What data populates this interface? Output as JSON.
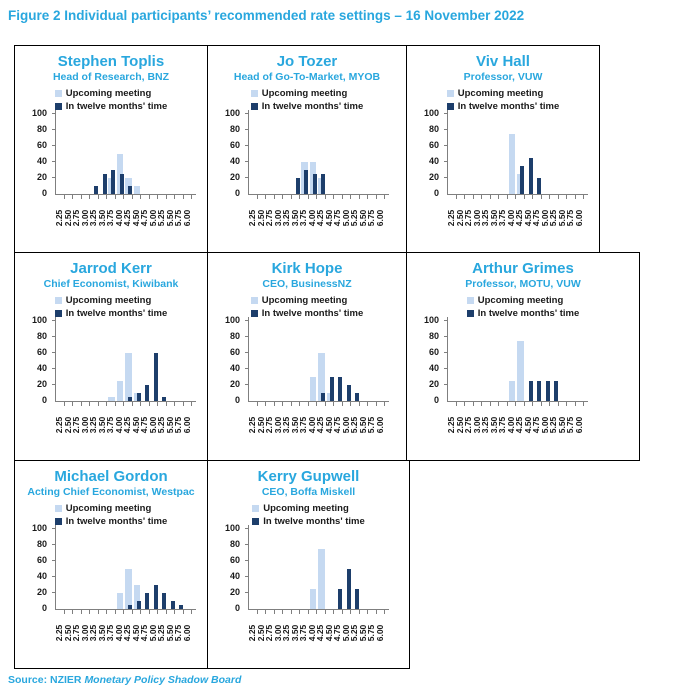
{
  "header": {
    "title": "Figure 2 Individual participants’ recommended rate settings – 16 November 2022"
  },
  "footer": {
    "source_prefix": "Source: NZIER ",
    "source_name": "Monetary Policy Shadow Board"
  },
  "colors": {
    "accent_blue": "#29A7DE",
    "bar_light": "#C5D9F1",
    "bar_dark": "#1D3E6B",
    "axis_gray": "#7F7F7F"
  },
  "legend": {
    "upcoming_label": "Upcoming meeting",
    "twelve_label": "In twelve months' time"
  },
  "axis": {
    "yticks": [
      0,
      20,
      40,
      60,
      80,
      100
    ],
    "ylim": [
      0,
      100
    ]
  },
  "chart_data": [
    {
      "type": "bar",
      "title": "Stephen Toplis",
      "subtitle": "Head of Research, BNZ",
      "categories": [
        "2.25",
        "2.50",
        "2.75",
        "3.00",
        "3.25",
        "3.50",
        "3.75",
        "4.00",
        "4.25",
        "4.50",
        "4.75",
        "5.00",
        "5.25",
        "5.50",
        "5.75",
        "6.00"
      ],
      "ylim": [
        0,
        100
      ],
      "grid": false,
      "legend_position": "top",
      "series": [
        {
          "name": "Upcoming meeting",
          "values": [
            0,
            0,
            0,
            0,
            0,
            0,
            20,
            50,
            20,
            10,
            0,
            0,
            0,
            0,
            0,
            0
          ]
        },
        {
          "name": "In twelve months' time",
          "values": [
            0,
            0,
            0,
            0,
            10,
            25,
            30,
            25,
            10,
            0,
            0,
            0,
            0,
            0,
            0,
            0
          ]
        }
      ]
    },
    {
      "type": "bar",
      "title": "Jo Tozer",
      "subtitle": "Head of Go-To-Market, MYOB",
      "categories": [
        "2.25",
        "2.50",
        "2.75",
        "3.00",
        "3.25",
        "3.50",
        "3.75",
        "4.00",
        "4.25",
        "4.50",
        "4.75",
        "5.00",
        "5.25",
        "5.50",
        "5.75",
        "6.00"
      ],
      "ylim": [
        0,
        100
      ],
      "grid": false,
      "legend_position": "top",
      "series": [
        {
          "name": "Upcoming meeting",
          "values": [
            0,
            0,
            0,
            0,
            0,
            0,
            40,
            40,
            20,
            0,
            0,
            0,
            0,
            0,
            0,
            0
          ]
        },
        {
          "name": "In twelve months' time",
          "values": [
            0,
            0,
            0,
            0,
            0,
            20,
            30,
            25,
            25,
            0,
            0,
            0,
            0,
            0,
            0,
            0
          ]
        }
      ]
    },
    {
      "type": "bar",
      "title": "Viv Hall",
      "subtitle": "Professor, VUW",
      "categories": [
        "2.25",
        "2.50",
        "2.75",
        "3.00",
        "3.25",
        "3.50",
        "3.75",
        "4.00",
        "4.25",
        "4.50",
        "4.75",
        "5.00",
        "5.25",
        "5.50",
        "5.75",
        "6.00"
      ],
      "ylim": [
        0,
        100
      ],
      "grid": false,
      "legend_position": "top",
      "series": [
        {
          "name": "Upcoming meeting",
          "values": [
            0,
            0,
            0,
            0,
            0,
            0,
            0,
            75,
            25,
            0,
            0,
            0,
            0,
            0,
            0,
            0
          ]
        },
        {
          "name": "In twelve months' time",
          "values": [
            0,
            0,
            0,
            0,
            0,
            0,
            0,
            0,
            35,
            45,
            20,
            0,
            0,
            0,
            0,
            0
          ]
        }
      ]
    },
    {
      "type": "bar",
      "title": "Jarrod Kerr",
      "subtitle": "Chief Economist, Kiwibank",
      "categories": [
        "2.25",
        "2.50",
        "2.75",
        "3.00",
        "3.25",
        "3.50",
        "3.75",
        "4.00",
        "4.25",
        "4.50",
        "4.75",
        "5.00",
        "5.25",
        "5.50",
        "5.75",
        "6.00"
      ],
      "ylim": [
        0,
        100
      ],
      "grid": false,
      "legend_position": "top",
      "series": [
        {
          "name": "Upcoming meeting",
          "values": [
            0,
            0,
            0,
            0,
            0,
            0,
            5,
            25,
            60,
            10,
            0,
            0,
            0,
            0,
            0,
            0
          ]
        },
        {
          "name": "In twelve months' time",
          "values": [
            0,
            0,
            0,
            0,
            0,
            0,
            0,
            0,
            5,
            10,
            20,
            60,
            5,
            0,
            0,
            0
          ]
        }
      ]
    },
    {
      "type": "bar",
      "title": "Kirk Hope",
      "subtitle": "CEO, BusinessNZ",
      "categories": [
        "2.25",
        "2.50",
        "2.75",
        "3.00",
        "3.25",
        "3.50",
        "3.75",
        "4.00",
        "4.25",
        "4.50",
        "4.75",
        "5.00",
        "5.25",
        "5.50",
        "5.75",
        "6.00"
      ],
      "ylim": [
        0,
        100
      ],
      "grid": false,
      "legend_position": "top",
      "series": [
        {
          "name": "Upcoming meeting",
          "values": [
            0,
            0,
            0,
            0,
            0,
            0,
            0,
            30,
            60,
            10,
            0,
            0,
            0,
            0,
            0,
            0
          ]
        },
        {
          "name": "In twelve months' time",
          "values": [
            0,
            0,
            0,
            0,
            0,
            0,
            0,
            0,
            10,
            30,
            30,
            20,
            10,
            0,
            0,
            0
          ]
        }
      ]
    },
    {
      "type": "bar",
      "title": "Arthur Grimes",
      "subtitle": "Professor, MOTU, VUW",
      "categories": [
        "2.25",
        "2.50",
        "2.75",
        "3.00",
        "3.25",
        "3.50",
        "3.75",
        "4.00",
        "4.25",
        "4.50",
        "4.75",
        "5.00",
        "5.25",
        "5.50",
        "5.75",
        "6.00"
      ],
      "ylim": [
        0,
        100
      ],
      "grid": false,
      "legend_position": "top",
      "series": [
        {
          "name": "Upcoming meeting",
          "values": [
            0,
            0,
            0,
            0,
            0,
            0,
            0,
            25,
            75,
            0,
            0,
            0,
            0,
            0,
            0,
            0
          ]
        },
        {
          "name": "In twelve months' time",
          "values": [
            0,
            0,
            0,
            0,
            0,
            0,
            0,
            0,
            0,
            25,
            25,
            25,
            25,
            0,
            0,
            0
          ]
        }
      ]
    },
    {
      "type": "bar",
      "title": "Michael Gordon",
      "subtitle": "Acting Chief Economist, Westpac",
      "categories": [
        "2.25",
        "2.50",
        "2.75",
        "3.00",
        "3.25",
        "3.50",
        "3.75",
        "4.00",
        "4.25",
        "4.50",
        "4.75",
        "5.00",
        "5.25",
        "5.50",
        "5.75",
        "6.00"
      ],
      "ylim": [
        0,
        100
      ],
      "grid": false,
      "legend_position": "top",
      "series": [
        {
          "name": "Upcoming meeting",
          "values": [
            0,
            0,
            0,
            0,
            0,
            0,
            0,
            20,
            50,
            30,
            0,
            0,
            0,
            0,
            0,
            0
          ]
        },
        {
          "name": "In twelve months' time",
          "values": [
            0,
            0,
            0,
            0,
            0,
            0,
            0,
            0,
            5,
            10,
            20,
            30,
            20,
            10,
            5,
            0
          ]
        }
      ]
    },
    {
      "type": "bar",
      "title": "Kerry Gupwell",
      "subtitle": "CEO, Boffa Miskell",
      "categories": [
        "2.25",
        "2.50",
        "2.75",
        "3.00",
        "3.25",
        "3.50",
        "3.75",
        "4.00",
        "4.25",
        "4.50",
        "4.75",
        "5.00",
        "5.25",
        "5.50",
        "5.75",
        "6.00"
      ],
      "ylim": [
        0,
        100
      ],
      "grid": false,
      "legend_position": "top",
      "series": [
        {
          "name": "Upcoming meeting",
          "values": [
            0,
            0,
            0,
            0,
            0,
            0,
            0,
            25,
            75,
            0,
            0,
            0,
            0,
            0,
            0,
            0
          ]
        },
        {
          "name": "In twelve months' time",
          "values": [
            0,
            0,
            0,
            0,
            0,
            0,
            0,
            0,
            0,
            0,
            25,
            50,
            25,
            0,
            0,
            0
          ]
        }
      ]
    }
  ]
}
